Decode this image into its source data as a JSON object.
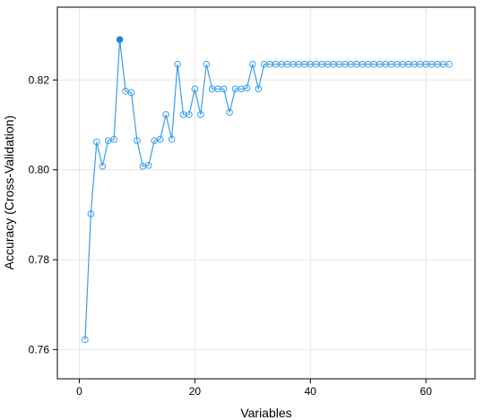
{
  "chart_data": {
    "type": "line",
    "xlabel": "Variables",
    "ylabel": "Accuracy (Cross-Validation)",
    "xlim": [
      -3.8,
      68.5
    ],
    "ylim": [
      0.7535,
      0.8362
    ],
    "x_ticks": [
      0,
      20,
      40,
      60
    ],
    "x_tick_labels": [
      "0",
      "20",
      "40",
      "60"
    ],
    "y_ticks": [
      0.76,
      0.78,
      0.8,
      0.82
    ],
    "y_tick_labels": [
      "0.76",
      "0.78",
      "0.80",
      "0.82"
    ],
    "grid": true,
    "colors": {
      "line": "#3d9ee6",
      "highlight": "#1a85e0",
      "grid": "#e5e5e5",
      "frame": "#000000"
    },
    "highlight_index": 6,
    "series": [
      {
        "x": [
          1,
          2,
          3,
          4,
          5,
          6,
          7,
          8,
          9,
          10,
          11,
          12,
          13,
          14,
          15,
          16,
          17,
          18,
          19,
          20,
          21,
          22,
          23,
          24,
          25,
          26,
          27,
          28,
          29,
          30,
          31,
          32,
          33,
          34,
          35,
          36,
          37,
          38,
          39,
          40,
          41,
          42,
          43,
          44,
          45,
          46,
          47,
          48,
          49,
          50,
          51,
          52,
          53,
          54,
          55,
          56,
          57,
          58,
          59,
          60,
          61,
          62,
          63,
          64
        ],
        "values": [
          0.7622,
          0.7902,
          0.8062,
          0.8008,
          0.8065,
          0.8068,
          0.829,
          0.8175,
          0.8172,
          0.8065,
          0.8008,
          0.801,
          0.8065,
          0.8068,
          0.8123,
          0.8068,
          0.8235,
          0.8123,
          0.8123,
          0.818,
          0.8123,
          0.8235,
          0.818,
          0.818,
          0.818,
          0.8128,
          0.818,
          0.818,
          0.8182,
          0.8235,
          0.818,
          0.8235,
          0.8235,
          0.8235,
          0.8235,
          0.8235,
          0.8235,
          0.8235,
          0.8235,
          0.8235,
          0.8235,
          0.8235,
          0.8235,
          0.8235,
          0.8235,
          0.8235,
          0.8235,
          0.8235,
          0.8235,
          0.8235,
          0.8235,
          0.8235,
          0.8235,
          0.8235,
          0.8235,
          0.8235,
          0.8235,
          0.8235,
          0.8235,
          0.8235,
          0.8235,
          0.8235,
          0.8235,
          0.8235
        ]
      }
    ]
  }
}
